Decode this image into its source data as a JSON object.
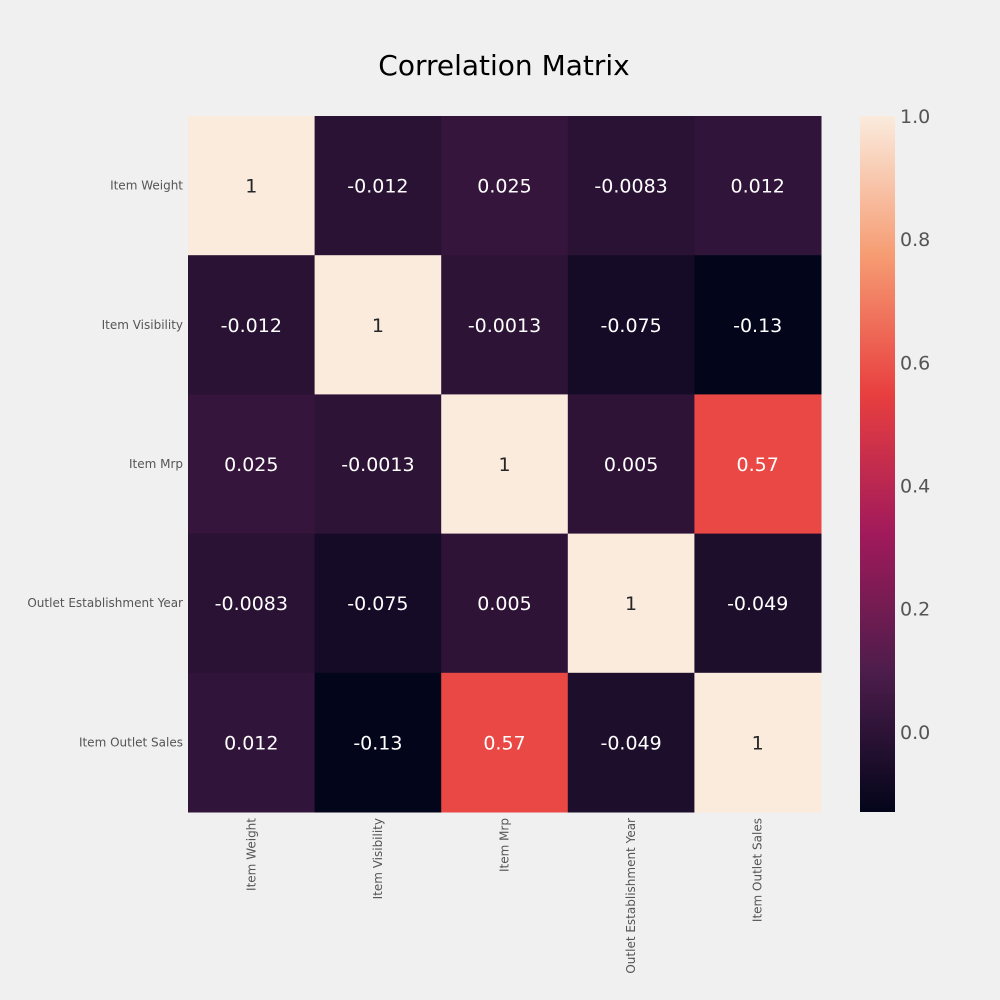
{
  "chart_data": {
    "type": "heatmap",
    "title": "Correlation Matrix",
    "row_labels": [
      "Item Weight",
      "Item Visibility",
      "Item Mrp",
      "Outlet Establishment Year",
      "Item Outlet Sales"
    ],
    "col_labels": [
      "Item Weight",
      "Item Visibility",
      "Item Mrp",
      "Outlet Establishment Year",
      "Item Outlet Sales"
    ],
    "values": [
      [
        1,
        -0.012,
        0.025,
        -0.0083,
        0.012
      ],
      [
        -0.012,
        1,
        -0.0013,
        -0.075,
        -0.13
      ],
      [
        0.025,
        -0.0013,
        1,
        0.005,
        0.57
      ],
      [
        -0.0083,
        -0.075,
        0.005,
        1,
        -0.049
      ],
      [
        0.012,
        -0.13,
        0.57,
        -0.049,
        1
      ]
    ],
    "annotations": [
      [
        "1",
        "-0.012",
        "0.025",
        "-0.0083",
        "0.012"
      ],
      [
        "-0.012",
        "1",
        "-0.0013",
        "-0.075",
        "-0.13"
      ],
      [
        "0.025",
        "-0.0013",
        "1",
        "0.005",
        "0.57"
      ],
      [
        "-0.0083",
        "-0.075",
        "0.005",
        "1",
        "-0.049"
      ],
      [
        "0.012",
        "-0.13",
        "0.57",
        "-0.049",
        "1"
      ]
    ],
    "colorbar": {
      "vmin": -0.13,
      "vmax": 1,
      "ticks": [
        0.0,
        0.2,
        0.4,
        0.6,
        0.8,
        1.0
      ],
      "tick_labels": [
        "0.0",
        "0.2",
        "0.4",
        "0.6",
        "0.8",
        "1.0"
      ],
      "colormap": "rocket",
      "colors": [
        "#03051a",
        "#4c1d4b",
        "#a11a5b",
        "#e83f3f",
        "#f69c73",
        "#faebdd"
      ]
    },
    "background": "#f0f0f0",
    "text_color_dark": "#262626",
    "text_color_light": "#ffffff",
    "tick_label_color": "#555555"
  }
}
